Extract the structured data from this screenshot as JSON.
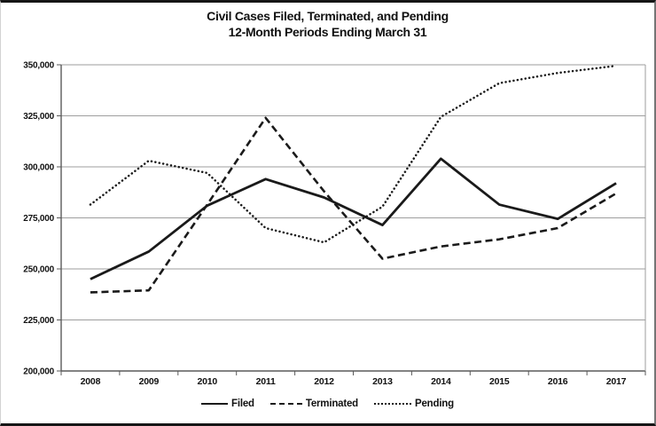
{
  "chart_data": {
    "type": "line",
    "title": "Civil Cases Filed, Terminated, and Pending",
    "subtitle": "12-Month Periods Ending March 31",
    "categories": [
      "2008",
      "2009",
      "2010",
      "2011",
      "2012",
      "2013",
      "2014",
      "2015",
      "2016",
      "2017"
    ],
    "series": [
      {
        "name": "Filed",
        "line_style": "solid",
        "values": [
          245000,
          258500,
          281000,
          294000,
          285000,
          271500,
          304000,
          281500,
          274500,
          292000
        ]
      },
      {
        "name": "Terminated",
        "line_style": "dashed",
        "values": [
          238500,
          239500,
          281500,
          324000,
          288000,
          255000,
          261000,
          264500,
          270000,
          287000
        ]
      },
      {
        "name": "Pending",
        "line_style": "dotted",
        "values": [
          281500,
          303000,
          297000,
          270000,
          263000,
          280500,
          324500,
          341000,
          346000,
          349500
        ]
      }
    ],
    "ylim": [
      200000,
      350000
    ],
    "ytick_step": 25000,
    "ytick_labels": [
      "200,000",
      "225,000",
      "250,000",
      "275,000",
      "300,000",
      "325,000",
      "350,000"
    ],
    "xlabel": "",
    "ylabel": "",
    "grid": "horizontal",
    "legend_position": "bottom",
    "line_color": "#1a1a1a",
    "axis_color": "#5a5a5a",
    "grid_color": "#9e9e9e"
  }
}
